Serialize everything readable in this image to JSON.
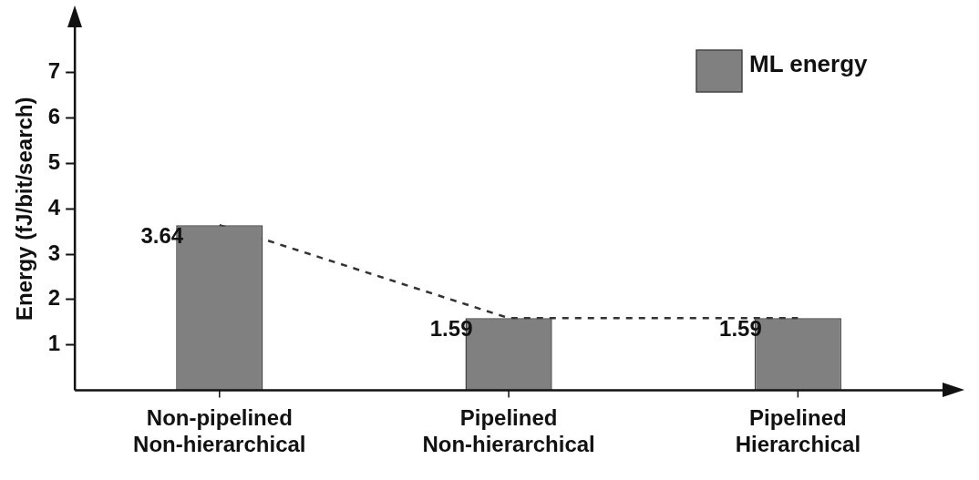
{
  "chart_data": {
    "type": "bar",
    "ylabel": "Energy (fJ/bit/search)",
    "categories": [
      "Non-pipelined Non-hierarchical",
      "Pipelined Non-hierarchical",
      "Pipelined Hierarchical"
    ],
    "series": [
      {
        "name": "ML energy",
        "color": "#808080",
        "values": [
          3.64,
          1.59,
          1.59
        ],
        "value_labels": [
          "3.64",
          "1.59",
          "1.59"
        ]
      },
      {
        "type": "line",
        "color": "#333333",
        "values": [
          3.64,
          1.59,
          1.59
        ],
        "line_style": "dashed",
        "marker": "none"
      }
    ],
    "ylim": [
      0,
      8
    ],
    "yticks": [
      1,
      2,
      3,
      4,
      5,
      6,
      7
    ],
    "grid": false,
    "legend": "top right"
  }
}
